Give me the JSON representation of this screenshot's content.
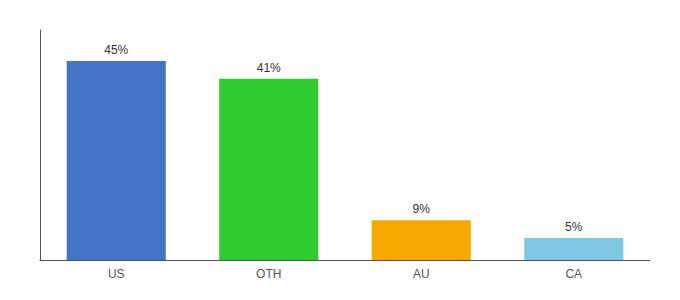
{
  "chart_data": {
    "type": "bar",
    "categories": [
      "US",
      "OTH",
      "AU",
      "CA"
    ],
    "values": [
      45,
      41,
      9,
      5
    ],
    "value_labels": [
      "45%",
      "41%",
      "9%",
      "5%"
    ],
    "colors": [
      "#4472c4",
      "#2ecc2e",
      "#f5a800",
      "#7ec8e3"
    ],
    "ylim": [
      0,
      52
    ],
    "grid": false,
    "data_labels": true,
    "tick_labels": "x"
  }
}
